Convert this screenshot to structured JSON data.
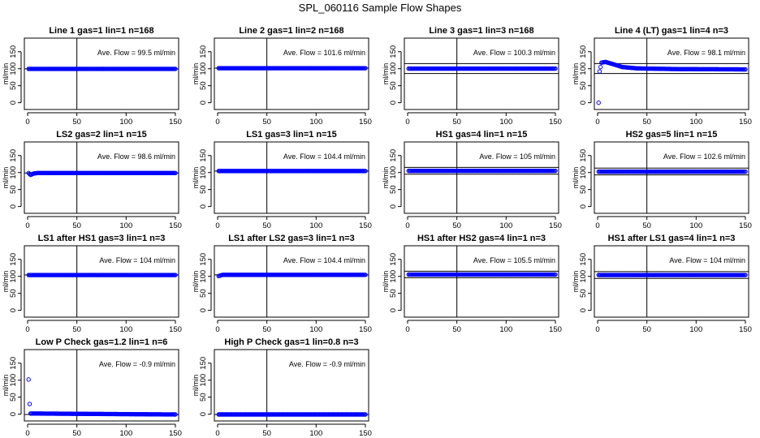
{
  "figure_title": "SPL_060116  Sample Flow Shapes",
  "colors": {
    "points": "#0000ff",
    "axes": "#000000",
    "background": "#ffffff"
  },
  "chart_data": [
    {
      "type": "scatter",
      "title": "Line 1 gas=1 lin=1 n=168",
      "ylabel": "ml/min",
      "xlim": [
        0,
        150
      ],
      "ylim": [
        -20,
        190
      ],
      "xticks": [
        0,
        50,
        100,
        150
      ],
      "yticks": [
        0,
        50,
        100,
        150
      ],
      "annotation": "Ave. Flow =  99.5  ml/min",
      "ref_lines": {
        "x": 50,
        "y": [
          99.5
        ]
      },
      "series": [
        {
          "profile": [
            [
              1,
              99.5
            ],
            [
              150,
              99.5
            ]
          ],
          "x_range": [
            1,
            150
          ],
          "n_points": 150
        }
      ]
    },
    {
      "type": "scatter",
      "title": "Line 2 gas=1 lin=2 n=168",
      "ylabel": "ml/min",
      "xlim": [
        0,
        150
      ],
      "ylim": [
        -20,
        190
      ],
      "xticks": [
        0,
        50,
        100,
        150
      ],
      "yticks": [
        0,
        50,
        100,
        150
      ],
      "annotation": "Ave. Flow =  101.6  ml/min",
      "ref_lines": {
        "x": 50,
        "y": [
          101.6
        ]
      },
      "series": [
        {
          "profile": [
            [
              1,
              101.6
            ],
            [
              150,
              101.6
            ]
          ],
          "x_range": [
            1,
            150
          ],
          "n_points": 150
        }
      ]
    },
    {
      "type": "scatter",
      "title": "Line 3 gas=1 lin=3 n=168",
      "ylabel": "ml/min",
      "xlim": [
        0,
        150
      ],
      "ylim": [
        -20,
        190
      ],
      "xticks": [
        0,
        50,
        100,
        150
      ],
      "yticks": [
        0,
        50,
        100,
        150
      ],
      "annotation": "Ave. Flow =  100.3  ml/min",
      "ref_lines": {
        "x": 50,
        "y": [
          86,
          115
        ]
      },
      "series": [
        {
          "profile": [
            [
              1,
              100.3
            ],
            [
              150,
              100.3
            ]
          ],
          "x_range": [
            1,
            150
          ],
          "n_points": 150
        }
      ]
    },
    {
      "type": "scatter",
      "title": "Line 4 (LT) gas=1 lin=4 n=3",
      "ylabel": "ml/min",
      "xlim": [
        0,
        150
      ],
      "ylim": [
        -20,
        190
      ],
      "xticks": [
        0,
        50,
        100,
        150
      ],
      "yticks": [
        0,
        50,
        100,
        150
      ],
      "annotation": "Ave. Flow =  98.1  ml/min",
      "ref_lines": {
        "x": 50,
        "y": [
          86,
          115
        ]
      },
      "series": [
        {
          "profile": [
            [
              1,
              0
            ],
            [
              2,
              92
            ],
            [
              4,
              118
            ],
            [
              8,
              120
            ],
            [
              15,
              114
            ],
            [
              25,
              105
            ],
            [
              40,
              101
            ],
            [
              80,
              99
            ],
            [
              150,
              98
            ]
          ],
          "x_range": [
            1,
            150
          ],
          "n_points": 150
        }
      ]
    },
    {
      "type": "scatter",
      "title": "LS2 gas=2 lin=1 n=15",
      "ylabel": "ml/min",
      "xlim": [
        0,
        150
      ],
      "ylim": [
        -20,
        190
      ],
      "xticks": [
        0,
        50,
        100,
        150
      ],
      "yticks": [
        0,
        50,
        100,
        150
      ],
      "annotation": "Ave. Flow =  98.6  ml/min",
      "ref_lines": {
        "x": 50,
        "y": [
          98.6
        ]
      },
      "series": [
        {
          "profile": [
            [
              1,
              98.6
            ],
            [
              3,
              93
            ],
            [
              6,
              97
            ],
            [
              10,
              98.6
            ],
            [
              150,
              98.6
            ]
          ],
          "x_range": [
            1,
            150
          ],
          "n_points": 150
        }
      ]
    },
    {
      "type": "scatter",
      "title": "LS1 gas=3 lin=1 n=15",
      "ylabel": "ml/min",
      "xlim": [
        0,
        150
      ],
      "ylim": [
        -20,
        190
      ],
      "xticks": [
        0,
        50,
        100,
        150
      ],
      "yticks": [
        0,
        50,
        100,
        150
      ],
      "annotation": "Ave. Flow =  104.4  ml/min",
      "ref_lines": {
        "x": 50,
        "y": [
          104.4
        ]
      },
      "series": [
        {
          "profile": [
            [
              1,
              104.4
            ],
            [
              150,
              104.4
            ]
          ],
          "x_range": [
            1,
            150
          ],
          "n_points": 150
        }
      ]
    },
    {
      "type": "scatter",
      "title": "HS1 gas=4 lin=1 n=15",
      "ylabel": "ml/min",
      "xlim": [
        0,
        150
      ],
      "ylim": [
        -20,
        190
      ],
      "xticks": [
        0,
        50,
        100,
        150
      ],
      "yticks": [
        0,
        50,
        100,
        150
      ],
      "annotation": "Ave. Flow =  105  ml/min",
      "ref_lines": {
        "x": 50,
        "y": [
          95,
          115
        ]
      },
      "series": [
        {
          "profile": [
            [
              1,
              105
            ],
            [
              150,
              105
            ]
          ],
          "x_range": [
            1,
            150
          ],
          "n_points": 150
        }
      ]
    },
    {
      "type": "scatter",
      "title": "HS2 gas=5 lin=1 n=15",
      "ylabel": "ml/min",
      "xlim": [
        0,
        150
      ],
      "ylim": [
        -20,
        190
      ],
      "xticks": [
        0,
        50,
        100,
        150
      ],
      "yticks": [
        0,
        50,
        100,
        150
      ],
      "annotation": "Ave. Flow =  102.6  ml/min",
      "ref_lines": {
        "x": 50,
        "y": [
          93,
          113
        ]
      },
      "series": [
        {
          "profile": [
            [
              1,
              102.6
            ],
            [
              150,
              102.6
            ]
          ],
          "x_range": [
            1,
            150
          ],
          "n_points": 150
        }
      ]
    },
    {
      "type": "scatter",
      "title": "LS1 after HS1 gas=3 lin=1 n=3",
      "ylabel": "ml/min",
      "xlim": [
        0,
        150
      ],
      "ylim": [
        -20,
        190
      ],
      "xticks": [
        0,
        50,
        100,
        150
      ],
      "yticks": [
        0,
        50,
        100,
        150
      ],
      "annotation": "Ave. Flow =  104  ml/min",
      "ref_lines": {
        "x": 50,
        "y": [
          104
        ]
      },
      "series": [
        {
          "profile": [
            [
              1,
              104
            ],
            [
              150,
              104
            ]
          ],
          "x_range": [
            1,
            150
          ],
          "n_points": 150
        }
      ]
    },
    {
      "type": "scatter",
      "title": "LS1 after LS2 gas=3 lin=1 n=3",
      "ylabel": "ml/min",
      "xlim": [
        0,
        150
      ],
      "ylim": [
        -20,
        190
      ],
      "xticks": [
        0,
        50,
        100,
        150
      ],
      "yticks": [
        0,
        50,
        100,
        150
      ],
      "annotation": "Ave. Flow =  104.4  ml/min",
      "ref_lines": {
        "x": 50,
        "y": [
          104.4
        ]
      },
      "series": [
        {
          "profile": [
            [
              1,
              101
            ],
            [
              5,
              104.4
            ],
            [
              150,
              104.4
            ]
          ],
          "x_range": [
            1,
            150
          ],
          "n_points": 150
        }
      ]
    },
    {
      "type": "scatter",
      "title": "HS1 after HS2 gas=4 lin=1 n=3",
      "ylabel": "ml/min",
      "xlim": [
        0,
        150
      ],
      "ylim": [
        -20,
        190
      ],
      "xticks": [
        0,
        50,
        100,
        150
      ],
      "yticks": [
        0,
        50,
        100,
        150
      ],
      "annotation": "Ave. Flow =  105.5  ml/min",
      "ref_lines": {
        "x": 50,
        "y": [
          96,
          115
        ]
      },
      "series": [
        {
          "profile": [
            [
              1,
              105.5
            ],
            [
              150,
              105.5
            ]
          ],
          "x_range": [
            1,
            150
          ],
          "n_points": 150
        }
      ]
    },
    {
      "type": "scatter",
      "title": "HS1 after LS1 gas=4 lin=1 n=3",
      "ylabel": "ml/min",
      "xlim": [
        0,
        150
      ],
      "ylim": [
        -20,
        190
      ],
      "xticks": [
        0,
        50,
        100,
        150
      ],
      "yticks": [
        0,
        50,
        100,
        150
      ],
      "annotation": "Ave. Flow =  104  ml/min",
      "ref_lines": {
        "x": 50,
        "y": [
          94,
          114
        ]
      },
      "series": [
        {
          "profile": [
            [
              1,
              104
            ],
            [
              150,
              104
            ]
          ],
          "x_range": [
            1,
            150
          ],
          "n_points": 150
        }
      ]
    },
    {
      "type": "scatter",
      "title": "Low P Check gas=1.2 lin=1 n=6",
      "ylabel": "ml/min",
      "xlim": [
        0,
        150
      ],
      "ylim": [
        -20,
        190
      ],
      "xticks": [
        0,
        50,
        100,
        150
      ],
      "yticks": [
        0,
        50,
        100,
        150
      ],
      "annotation": "Ave. Flow =  -0.9  ml/min",
      "ref_lines": {
        "x": 50,
        "y": [
          -0.9
        ]
      },
      "series": [
        {
          "profile": [
            [
              1,
              102
            ],
            [
              2,
              30
            ],
            [
              3,
              2
            ],
            [
              150,
              -0.9
            ]
          ],
          "x_range": [
            1,
            150
          ],
          "n_points": 150
        }
      ]
    },
    {
      "type": "scatter",
      "title": "High P Check gas=1 lin=0.8 n=3",
      "ylabel": "ml/min",
      "xlim": [
        0,
        150
      ],
      "ylim": [
        -20,
        190
      ],
      "xticks": [
        0,
        50,
        100,
        150
      ],
      "yticks": [
        0,
        50,
        100,
        150
      ],
      "annotation": "Ave. Flow =  -0.9  ml/min",
      "ref_lines": {
        "x": 50,
        "y": [
          -0.9
        ]
      },
      "series": [
        {
          "profile": [
            [
              1,
              -0.9
            ],
            [
              150,
              -0.9
            ]
          ],
          "x_range": [
            1,
            150
          ],
          "n_points": 150
        }
      ]
    }
  ]
}
